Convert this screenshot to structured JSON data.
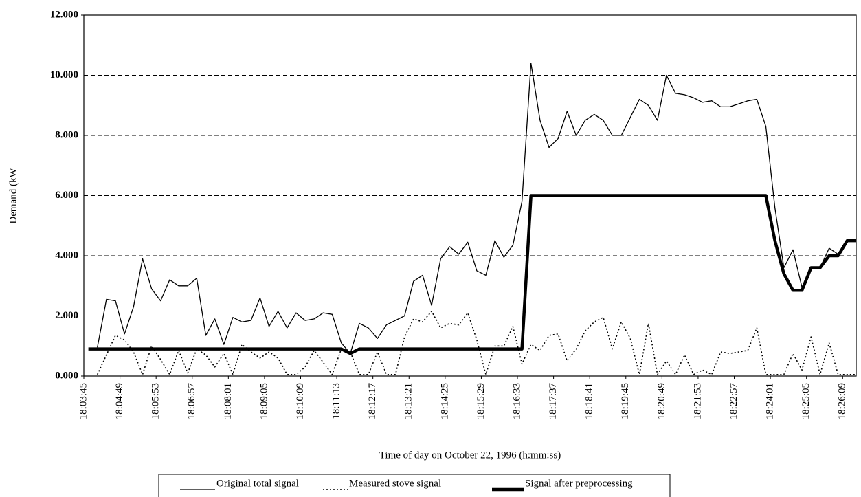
{
  "chart_data": {
    "type": "line",
    "ylabel": "Demand (kW",
    "xlabel": "Time of day on October 22, 1996 (h:mm:ss)",
    "grid": true,
    "legend": "bottom",
    "xlim": [
      65025,
      66393
    ],
    "xticks": [
      {
        "value": 65025,
        "label": "18:03:45"
      },
      {
        "value": 65089,
        "label": "18:04:49"
      },
      {
        "value": 65153,
        "label": "18:05:53"
      },
      {
        "value": 65217,
        "label": "18:06:57"
      },
      {
        "value": 65281,
        "label": "18:08:01"
      },
      {
        "value": 65345,
        "label": "18:09:05"
      },
      {
        "value": 65409,
        "label": "18:10:09"
      },
      {
        "value": 65473,
        "label": "18:11:13"
      },
      {
        "value": 65537,
        "label": "18:12:17"
      },
      {
        "value": 65601,
        "label": "18:13:21"
      },
      {
        "value": 65665,
        "label": "18:14:25"
      },
      {
        "value": 65729,
        "label": "18:15:29"
      },
      {
        "value": 65793,
        "label": "18:16:33"
      },
      {
        "value": 65857,
        "label": "18:17:37"
      },
      {
        "value": 65921,
        "label": "18:18:41"
      },
      {
        "value": 65985,
        "label": "18:19:45"
      },
      {
        "value": 66049,
        "label": "18:20:49"
      },
      {
        "value": 66113,
        "label": "18:21:53"
      },
      {
        "value": 66177,
        "label": "18:22:57"
      },
      {
        "value": 66241,
        "label": "18:24:01"
      },
      {
        "value": 66305,
        "label": "18:25:05"
      },
      {
        "value": 66369,
        "label": "18:26:09"
      }
    ],
    "ylim": [
      0,
      12
    ],
    "yticks": [
      {
        "value": 0,
        "label": "0.000"
      },
      {
        "value": 2,
        "label": "2.000"
      },
      {
        "value": 4,
        "label": "4.000"
      },
      {
        "value": 6,
        "label": "6.000"
      },
      {
        "value": 8,
        "label": "8.000"
      },
      {
        "value": 10,
        "label": "10.000"
      },
      {
        "value": 12,
        "label": "12.000"
      }
    ],
    "x": [
      65049,
      65065,
      65081,
      65097,
      65113,
      65129,
      65145,
      65161,
      65177,
      65193,
      65209,
      65225,
      65241,
      65257,
      65273,
      65289,
      65305,
      65321,
      65337,
      65353,
      65369,
      65385,
      65401,
      65417,
      65433,
      65449,
      65465,
      65481,
      65497,
      65513,
      65529,
      65545,
      65561,
      65577,
      65593,
      65609,
      65625,
      65641,
      65657,
      65673,
      65689,
      65705,
      65721,
      65737,
      65753,
      65769,
      65785,
      65801,
      65817,
      65833,
      65849,
      65865,
      65881,
      65897,
      65913,
      65929,
      65945,
      65961,
      65977,
      65993,
      66009,
      66025,
      66041,
      66057,
      66073,
      66089,
      66105,
      66121,
      66137,
      66153,
      66169,
      66185,
      66201,
      66217,
      66233,
      66249,
      66265,
      66281,
      66297,
      66313,
      66329,
      66345,
      66361,
      66377,
      66393
    ],
    "series": [
      {
        "name": "Original total signal",
        "color": "#000000",
        "line_style": "solid",
        "line_width": 1.3,
        "values": [
          0.95,
          2.55,
          2.5,
          1.4,
          2.3,
          3.9,
          2.9,
          2.5,
          3.2,
          3.0,
          3.0,
          3.25,
          1.35,
          1.9,
          1.05,
          1.95,
          1.8,
          1.85,
          2.6,
          1.65,
          2.15,
          1.6,
          2.1,
          1.85,
          1.9,
          2.1,
          2.05,
          1.1,
          0.75,
          1.75,
          1.6,
          1.25,
          1.7,
          1.85,
          2.0,
          3.15,
          3.35,
          2.35,
          3.9,
          4.3,
          4.05,
          4.45,
          3.5,
          3.35,
          4.5,
          3.95,
          4.35,
          5.8,
          10.4,
          8.5,
          7.6,
          7.9,
          8.8,
          8.0,
          8.5,
          8.7,
          8.5,
          8.0,
          8.0,
          8.6,
          9.2,
          9.0,
          8.5,
          10.0,
          9.4,
          9.35,
          9.25,
          9.1,
          9.15,
          8.95,
          8.95,
          9.05,
          9.15,
          9.2,
          8.3,
          5.6,
          3.6,
          4.2,
          2.95,
          3.6,
          3.6,
          4.25,
          4.05,
          4.55,
          4.55
        ]
      },
      {
        "name": "Measured stove signal",
        "color": "#000000",
        "line_style": "dotted",
        "line_width": 1.6,
        "values": [
          0.05,
          0.7,
          1.35,
          1.2,
          0.8,
          0.05,
          1.0,
          0.55,
          0.05,
          0.85,
          0.1,
          0.9,
          0.7,
          0.3,
          0.75,
          0.05,
          1.05,
          0.8,
          0.6,
          0.8,
          0.6,
          0.05,
          0.05,
          0.3,
          0.85,
          0.45,
          0.05,
          0.9,
          0.8,
          0.05,
          0.05,
          0.8,
          0.05,
          0.05,
          1.3,
          1.9,
          1.8,
          2.15,
          1.6,
          1.75,
          1.7,
          2.1,
          1.2,
          0.05,
          1.0,
          1.0,
          1.65,
          0.4,
          1.05,
          0.85,
          1.35,
          1.4,
          0.5,
          0.9,
          1.5,
          1.8,
          1.95,
          0.9,
          1.8,
          1.25,
          0.05,
          1.75,
          0.05,
          0.5,
          0.05,
          0.7,
          0.05,
          0.2,
          0.05,
          0.8,
          0.75,
          0.8,
          0.85,
          1.6,
          0.05,
          0.05,
          0.05,
          0.75,
          0.2,
          1.3,
          0.05,
          1.1,
          0.05,
          0.05,
          0.05
        ]
      },
      {
        "name": "Signal after preprocessing",
        "color": "#000000",
        "line_style": "solid",
        "line_width": 4.5,
        "x": [
          65033,
          65481,
          65497,
          65513,
          65801,
          65817,
          66233,
          66249,
          66265,
          66281,
          66297,
          66313,
          66329,
          66345,
          66361,
          66377,
          66393
        ],
        "values": [
          0.9,
          0.9,
          0.75,
          0.9,
          0.9,
          6.0,
          6.0,
          4.5,
          3.4,
          2.85,
          2.85,
          3.6,
          3.6,
          4.0,
          4.0,
          4.5,
          4.5
        ]
      }
    ]
  }
}
